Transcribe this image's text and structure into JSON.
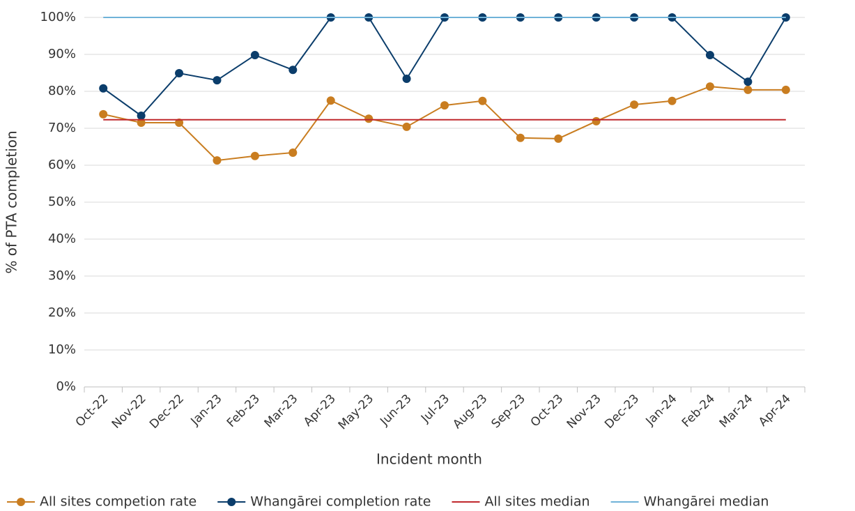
{
  "chart_data": {
    "type": "line",
    "x_label": "Incident month",
    "y_label": "% of PTA completion",
    "categories": [
      "Oct-22",
      "Nov-22",
      "Dec-22",
      "Jan-23",
      "Feb-23",
      "Mar-23",
      "Apr-23",
      "May-23",
      "Jun-23",
      "Jul-23",
      "Aug-23",
      "Sep-23",
      "Oct-23",
      "Nov-23",
      "Dec-23",
      "Jan-24",
      "Feb-24",
      "Mar-24",
      "Apr-24"
    ],
    "series": [
      {
        "name": "All sites competion rate",
        "color": "#c97d20",
        "marker": true,
        "values": [
          73.8,
          71.5,
          71.5,
          61.3,
          62.5,
          63.4,
          77.5,
          72.6,
          70.4,
          76.2,
          77.4,
          67.4,
          67.2,
          71.9,
          76.4,
          77.4,
          81.3,
          80.4,
          80.4
        ]
      },
      {
        "name": "Whangārei completion rate",
        "color": "#0b3d6b",
        "marker": true,
        "values": [
          80.8,
          73.4,
          84.9,
          83.0,
          89.8,
          85.8,
          100,
          100,
          83.4,
          100,
          100,
          100,
          100,
          100,
          100,
          100,
          89.8,
          82.6,
          100
        ]
      },
      {
        "name": "All sites median",
        "color": "#c0282d",
        "marker": false,
        "values": [
          72.3,
          72.3,
          72.3,
          72.3,
          72.3,
          72.3,
          72.3,
          72.3,
          72.3,
          72.3,
          72.3,
          72.3,
          72.3,
          72.3,
          72.3,
          72.3,
          72.3,
          72.3,
          72.3
        ]
      },
      {
        "name": "Whangārei median",
        "color": "#6fb2d8",
        "marker": false,
        "values": [
          100,
          100,
          100,
          100,
          100,
          100,
          100,
          100,
          100,
          100,
          100,
          100,
          100,
          100,
          100,
          100,
          100,
          100,
          100
        ]
      }
    ],
    "ylim": [
      0,
      100
    ],
    "yticks": [
      {
        "value": 0,
        "label": "0%"
      },
      {
        "value": 10,
        "label": "10%"
      },
      {
        "value": 20,
        "label": "20%"
      },
      {
        "value": 30,
        "label": "30%"
      },
      {
        "value": 40,
        "label": "40%"
      },
      {
        "value": 50,
        "label": "50%"
      },
      {
        "value": 60,
        "label": "60%"
      },
      {
        "value": 70,
        "label": "70%"
      },
      {
        "value": 80,
        "label": "80%"
      },
      {
        "value": 90,
        "label": "90%"
      },
      {
        "value": 100,
        "label": "100%"
      }
    ],
    "grid": true,
    "legend": "bottom"
  }
}
